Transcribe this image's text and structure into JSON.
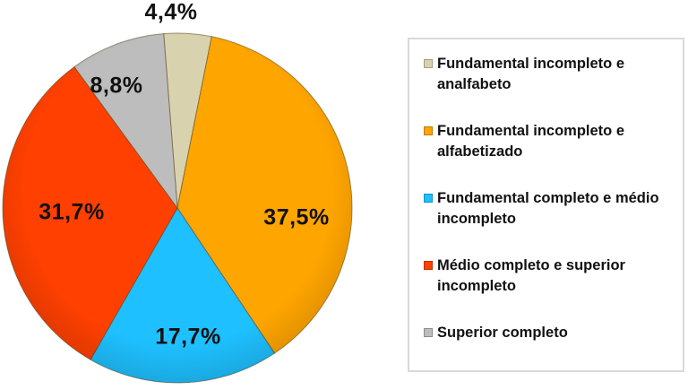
{
  "chart_data": {
    "type": "pie",
    "title": "",
    "categories": [
      "Fundamental incompleto e analfabeto",
      "Fundamental incompleto e alfabetizado",
      "Fundamental completo e médio incompleto",
      "Médio completo e superior incompleto",
      "Superior completo"
    ],
    "values": [
      4.4,
      37.5,
      17.7,
      31.7,
      8.8
    ],
    "value_labels": [
      "4,4%",
      "37,5%",
      "17,7%",
      "31,7%",
      "8,8%"
    ],
    "colors": [
      "#d8d3ae",
      "#ffa500",
      "#1ec0ff",
      "#ff4000",
      "#bdbdbd"
    ],
    "start_angle_deg": -4.5,
    "direction": "clockwise",
    "legend_position": "right"
  },
  "labels": {
    "s0": "4,4%",
    "s1": "37,5%",
    "s2": "17,7%",
    "s3": "31,7%",
    "s4": "8,8%"
  },
  "legend": {
    "items": [
      {
        "label": "Fundamental incompleto e analfabeto",
        "color": "#d8d3ae"
      },
      {
        "label": "Fundamental incompleto e alfabetizado",
        "color": "#ffa500"
      },
      {
        "label": "Fundamental completo e médio incompleto",
        "color": "#1ec0ff"
      },
      {
        "label": "Médio completo e superior incompleto",
        "color": "#ff4000"
      },
      {
        "label": "Superior completo",
        "color": "#bdbdbd"
      }
    ]
  }
}
